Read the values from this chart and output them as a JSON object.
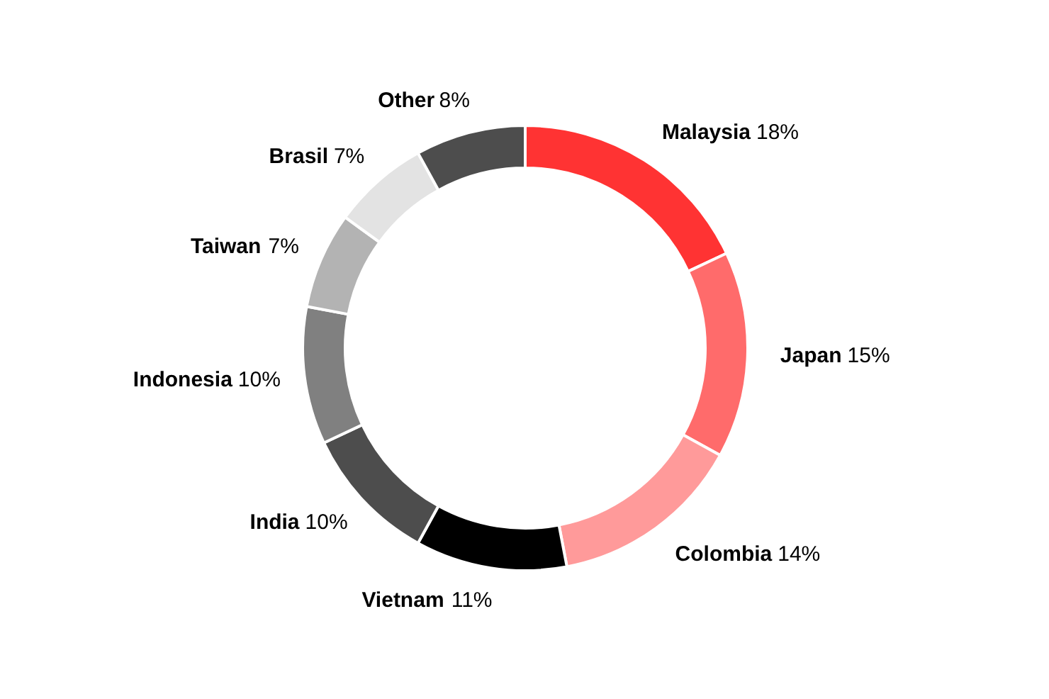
{
  "chart_data": {
    "type": "donut",
    "categories": [
      "Malaysia",
      "Japan",
      "Colombia",
      "Vietnam",
      "India",
      "Indonesia",
      "Taiwan",
      "Brasil",
      "Other"
    ],
    "values": [
      18,
      15,
      14,
      11,
      10,
      10,
      7,
      7,
      8
    ],
    "value_labels": [
      "18%",
      "15%",
      "14%",
      "11%",
      "10%",
      "10%",
      "7%",
      "7%",
      "8%"
    ],
    "colors": [
      "#ff3333",
      "#ff6b6b",
      "#ff9a9a",
      "#000000",
      "#4d4d4d",
      "#808080",
      "#b3b3b3",
      "#e3e3e3",
      "#4d4d4d"
    ]
  }
}
